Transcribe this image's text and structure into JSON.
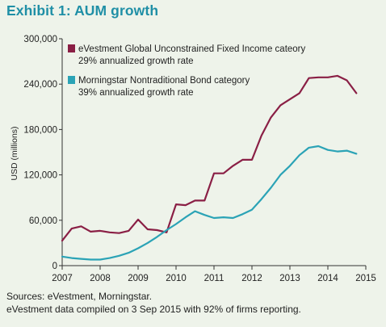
{
  "title": "Exhibit 1: AUM growth",
  "footer": {
    "sources": "Sources: eVestment, Morningstar.",
    "note": "eVestment data compiled on 3 Sep 2015 with 92% of firms reporting."
  },
  "chart_data": {
    "type": "line",
    "ylabel": "USD (millions)",
    "xlim": [
      2007,
      2015
    ],
    "ylim": [
      0,
      300000
    ],
    "x_ticks": [
      2007,
      2008,
      2009,
      2010,
      2011,
      2012,
      2013,
      2014,
      2015
    ],
    "y_ticks": [
      0,
      60000,
      120000,
      180000,
      240000,
      300000
    ],
    "x_tick_labels": [
      "2007",
      "2008",
      "2009",
      "2010",
      "2011",
      "2012",
      "2013",
      "2014",
      "2015"
    ],
    "y_tick_labels": [
      "0",
      "60,000",
      "120,000",
      "180,000",
      "240,000",
      "300,000"
    ],
    "legend_position": "top-left",
    "grid": false,
    "series": [
      {
        "name": "eVestment Global Unconstrained Fixed Income cateory",
        "subtitle": "29% annualized growth rate",
        "color": "#8a1f45",
        "x": [
          2007.0,
          2007.25,
          2007.5,
          2007.75,
          2008.0,
          2008.25,
          2008.5,
          2008.75,
          2009.0,
          2009.25,
          2009.5,
          2009.75,
          2010.0,
          2010.25,
          2010.5,
          2010.75,
          2011.0,
          2011.25,
          2011.5,
          2011.75,
          2012.0,
          2012.25,
          2012.5,
          2012.75,
          2013.0,
          2013.25,
          2013.5,
          2013.75,
          2014.0,
          2014.25,
          2014.5,
          2014.75
        ],
        "y": [
          33000,
          49000,
          52000,
          45000,
          46000,
          44000,
          43000,
          46000,
          61000,
          48000,
          47000,
          44000,
          81000,
          80000,
          86000,
          86000,
          122000,
          122000,
          132000,
          140000,
          140000,
          172000,
          196000,
          212000,
          220000,
          228000,
          248000,
          249000,
          249000,
          251000,
          245000,
          228000
        ]
      },
      {
        "name": "Morningstar Nontraditional Bond category",
        "subtitle": "39% annualized growth rate",
        "color": "#2ba3b6",
        "x": [
          2007.0,
          2007.25,
          2007.5,
          2007.75,
          2008.0,
          2008.25,
          2008.5,
          2008.75,
          2009.0,
          2009.25,
          2009.5,
          2009.75,
          2010.0,
          2010.25,
          2010.5,
          2010.75,
          2011.0,
          2011.25,
          2011.5,
          2011.75,
          2012.0,
          2012.25,
          2012.5,
          2012.75,
          2013.0,
          2013.25,
          2013.5,
          2013.75,
          2014.0,
          2014.25,
          2014.5,
          2014.75
        ],
        "y": [
          12000,
          10000,
          9000,
          8000,
          8000,
          10000,
          13000,
          17000,
          23000,
          30000,
          38000,
          47000,
          55000,
          64000,
          72000,
          67000,
          63000,
          64000,
          63000,
          68000,
          74000,
          88000,
          103000,
          120000,
          132000,
          146000,
          156000,
          158000,
          153000,
          151000,
          152000,
          148000
        ]
      }
    ]
  }
}
